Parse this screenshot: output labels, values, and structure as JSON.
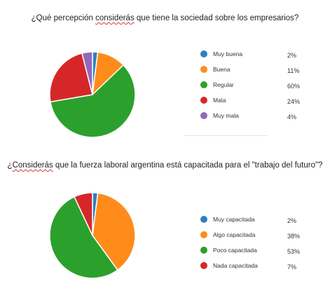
{
  "chart_data": [
    {
      "type": "pie",
      "title_pre": "¿Qué percepción ",
      "title_mark": "considerás",
      "title_post": " que tiene la sociedad sobre los empresarios?",
      "legend_position": "right",
      "categories": [
        "Muy buena",
        "Buena",
        "Regular",
        "Mala",
        "Muy mala"
      ],
      "values": [
        2,
        11,
        60,
        24,
        4
      ],
      "value_labels": [
        "2%",
        "11%",
        "60%",
        "24%",
        "4%"
      ],
      "colors": [
        "#2f7fc1",
        "#ff8c1a",
        "#2ca02c",
        "#d62728",
        "#9467bd"
      ]
    },
    {
      "type": "pie",
      "title_pre": "¿",
      "title_mark": "Considerás",
      "title_post": " que la fuerza laboral argentina está capacitada para el \"trabajo del futuro\"?",
      "legend_position": "right",
      "categories": [
        "Muy capacitada",
        "Algo capacitada",
        "Poco capacitada",
        "Nada capacitada"
      ],
      "values": [
        2,
        38,
        53,
        7
      ],
      "value_labels": [
        "2%",
        "38%",
        "53%",
        "7%"
      ],
      "colors": [
        "#2f7fc1",
        "#ff8c1a",
        "#2ca02c",
        "#d62728"
      ]
    }
  ]
}
